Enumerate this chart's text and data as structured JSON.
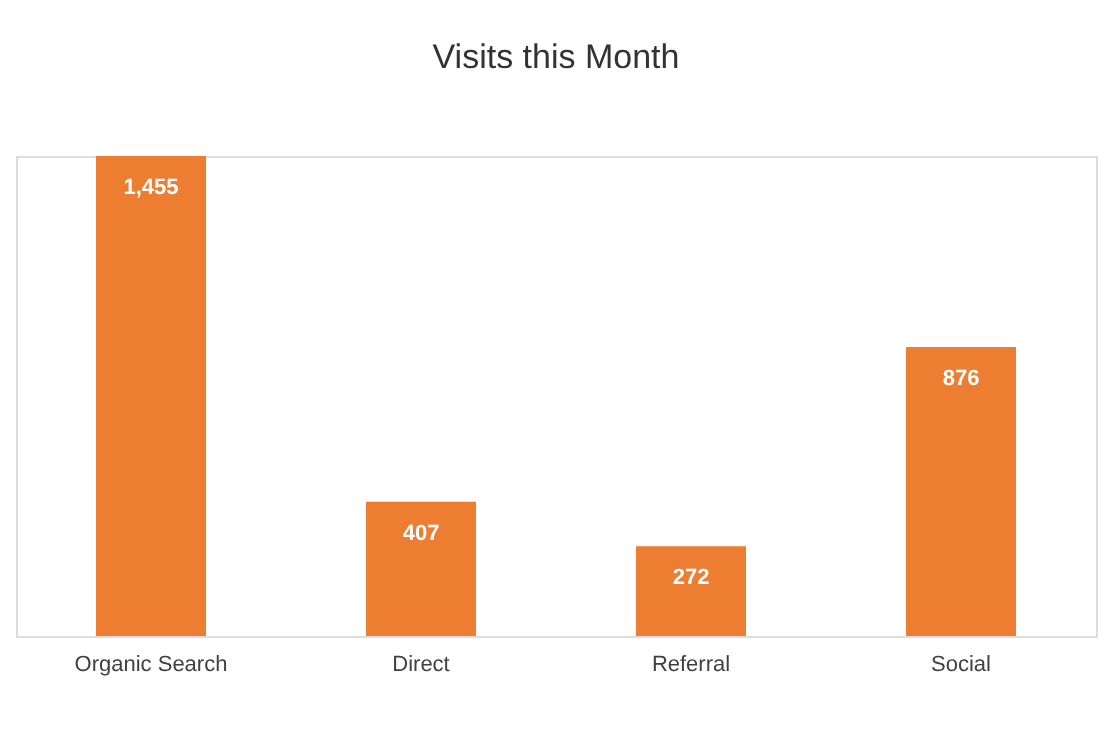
{
  "chart_data": {
    "type": "bar",
    "title": "Visits this Month",
    "categories": [
      "Organic Search",
      "Direct",
      "Referral",
      "Social"
    ],
    "values": [
      1455,
      407,
      272,
      876
    ],
    "color": "#ed7d31",
    "value_labels": [
      "1,455",
      "407",
      "272",
      "876"
    ],
    "grid": false
  }
}
